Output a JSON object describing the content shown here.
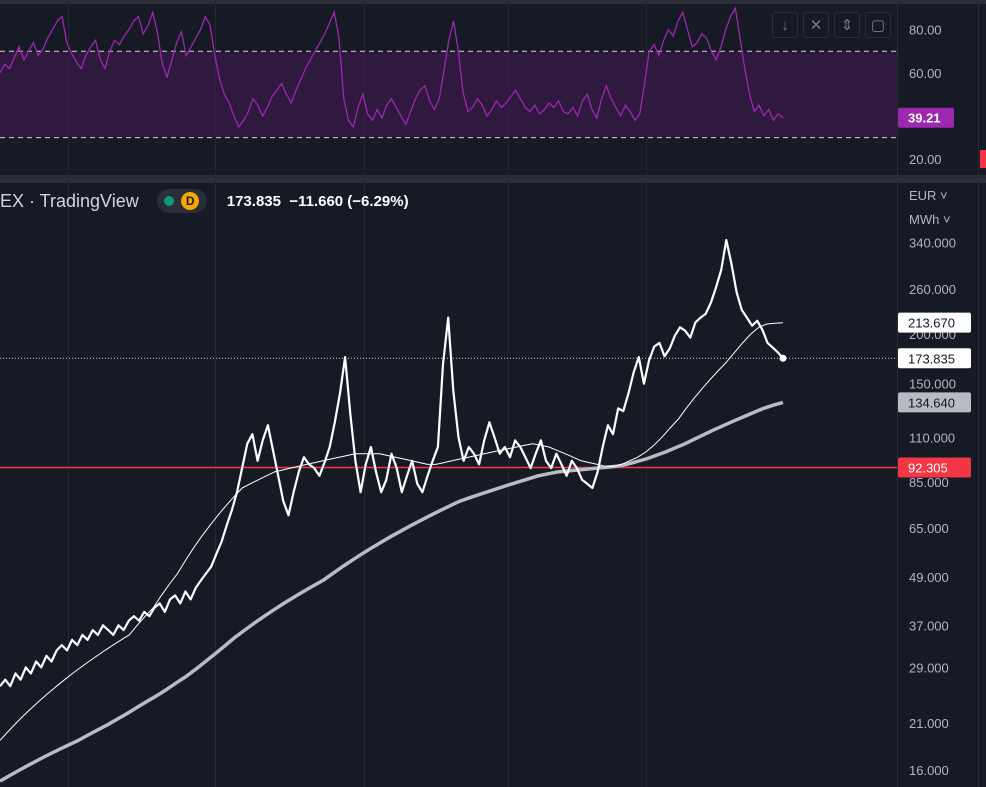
{
  "header": {
    "symbol_fragment": "EX · TradingView",
    "interval": "D",
    "last_price": "173.835",
    "change": "−11.660 (−6.29%)"
  },
  "units": {
    "currency": "EUR ˅",
    "unit": "MWh ˅"
  },
  "toolbar": [
    {
      "icon": "arrow-down-icon",
      "glyph": "↓"
    },
    {
      "icon": "close-icon",
      "glyph": "✕"
    },
    {
      "icon": "collapse-icon",
      "glyph": "⇕"
    },
    {
      "icon": "maximize-icon",
      "glyph": "▢"
    }
  ],
  "colors": {
    "background": "#161a25",
    "price_line": "#ffffff",
    "ma_fast": "#ffffff",
    "ma_slow": "#b8bac4",
    "rsi_line": "#9c27b0",
    "rsi_fill": "#3a1a48",
    "support_line": "#f23645"
  },
  "chart_data": [
    {
      "type": "line",
      "name": "rsi",
      "yticks": [
        "80.00",
        "60.00",
        "20.00"
      ],
      "ytick_values": [
        80,
        60,
        20
      ],
      "levels": [
        70,
        30
      ],
      "last_value_label": "39.21",
      "last_value": 39.21,
      "ylim": [
        15,
        90
      ],
      "values": [
        60,
        64,
        62,
        67,
        72,
        66,
        70,
        74,
        68,
        71,
        76,
        80,
        84,
        86,
        74,
        69,
        65,
        62,
        68,
        72,
        75,
        66,
        62,
        70,
        75,
        73,
        77,
        80,
        84,
        86,
        78,
        82,
        88,
        78,
        64,
        58,
        66,
        74,
        79,
        68,
        72,
        76,
        80,
        86,
        82,
        68,
        57,
        50,
        46,
        40,
        35,
        38,
        42,
        48,
        45,
        40,
        44,
        49,
        52,
        55,
        50,
        46,
        52,
        57,
        62,
        66,
        70,
        74,
        78,
        83,
        88,
        76,
        48,
        38,
        35,
        44,
        50,
        41,
        38,
        43,
        39,
        45,
        48,
        44,
        40,
        36,
        42,
        48,
        52,
        54,
        47,
        43,
        48,
        61,
        75,
        84,
        70,
        51,
        42,
        44,
        48,
        45,
        40,
        43,
        47,
        44,
        46,
        49,
        52,
        48,
        44,
        42,
        45,
        41,
        43,
        46,
        44,
        47,
        42,
        41,
        44,
        40,
        47,
        50,
        43,
        39,
        48,
        54,
        48,
        44,
        40,
        45,
        42,
        38,
        41,
        55,
        70,
        73,
        68,
        75,
        80,
        77,
        84,
        88,
        80,
        72,
        74,
        78,
        76,
        70,
        66,
        72,
        80,
        86,
        90,
        76,
        62,
        50,
        42,
        45,
        40,
        43,
        38,
        41,
        39.21
      ]
    },
    {
      "type": "line",
      "name": "price",
      "scale": "log",
      "yticks": [
        "340.000",
        "260.000",
        "200.000",
        "150.000",
        "110.000",
        "85.000",
        "65.000",
        "49.000",
        "37.000",
        "29.000",
        "21.000",
        "16.000"
      ],
      "ytick_values": [
        340,
        260,
        200,
        150,
        110,
        85,
        65,
        49,
        37,
        29,
        21,
        16
      ],
      "ylim": [
        14.5,
        480
      ],
      "horizontal_line": {
        "value": 92.305,
        "label": "92.305"
      },
      "labels": {
        "ma_fast": "213.670",
        "last": "173.835",
        "ma_slow": "134.640"
      },
      "series": [
        {
          "key": "price",
          "values": [
            26,
            27,
            26,
            28,
            27,
            29,
            28,
            30,
            29,
            31,
            30,
            32,
            33,
            32,
            34,
            33,
            35,
            34,
            36,
            35,
            37,
            36,
            35,
            37,
            36,
            38,
            39,
            38,
            40,
            39,
            41,
            42,
            40,
            43,
            44,
            42,
            45,
            43,
            46,
            48,
            50,
            52,
            56,
            60,
            66,
            72,
            80,
            92,
            106,
            112,
            96,
            108,
            118,
            102,
            88,
            76,
            70,
            80,
            90,
            98,
            94,
            92,
            88,
            95,
            104,
            120,
            142,
            175,
            126,
            96,
            80,
            94,
            104,
            90,
            80,
            86,
            100,
            92,
            80,
            88,
            96,
            84,
            80,
            88,
            96,
            104,
            168,
            220,
            144,
            110,
            96,
            104,
            100,
            94,
            108,
            120,
            110,
            100,
            104,
            98,
            108,
            104,
            98,
            92,
            100,
            108,
            96,
            92,
            100,
            94,
            88,
            96,
            92,
            86,
            84,
            82,
            90,
            104,
            118,
            112,
            130,
            128,
            142,
            160,
            175,
            150,
            172,
            186,
            190,
            176,
            184,
            198,
            208,
            204,
            196,
            214,
            220,
            225,
            240,
            262,
            290,
            345,
            300,
            255,
            230,
            220,
            210,
            216,
            205,
            190,
            185,
            180,
            173.835
          ]
        },
        {
          "key": "ma_fast",
          "values": [
            19,
            20,
            21,
            22,
            23,
            24,
            25,
            26,
            27,
            28,
            29,
            30,
            31,
            32,
            33,
            34,
            35,
            37,
            39,
            41,
            44,
            47,
            50,
            54,
            58,
            62,
            66,
            70,
            74,
            78,
            82,
            84,
            86,
            88,
            90,
            91,
            92,
            93,
            94,
            95,
            96,
            97,
            98,
            99,
            100,
            100,
            100,
            100,
            99,
            98,
            97,
            96,
            95,
            94,
            94,
            95,
            96,
            97,
            98,
            99,
            100,
            101,
            102,
            103,
            104,
            105,
            106,
            105,
            104,
            102,
            100,
            98,
            96,
            95,
            94,
            93,
            93,
            94,
            96,
            98,
            101,
            105,
            110,
            116,
            122,
            130,
            138,
            146,
            154,
            162,
            170,
            180,
            190,
            200,
            208,
            212,
            213,
            213.67
          ]
        },
        {
          "key": "ma_slow",
          "values": [
            15,
            15.5,
            16,
            16.5,
            17,
            17.5,
            18,
            18.5,
            19,
            19.6,
            20.2,
            20.8,
            21.5,
            22.2,
            23,
            23.8,
            24.6,
            25.5,
            26.5,
            27.5,
            28.7,
            30,
            31.4,
            32.9,
            34.5,
            36,
            37.5,
            39,
            40.5,
            42,
            43.5,
            45,
            46.5,
            48,
            50,
            52,
            54,
            56,
            58,
            60,
            62,
            64,
            66,
            68,
            70,
            72,
            74,
            76,
            77.5,
            79,
            80.5,
            82,
            83.5,
            85,
            86.5,
            88,
            89,
            90,
            90.5,
            91,
            91.5,
            92,
            92.5,
            93,
            94,
            95.5,
            97,
            99,
            101,
            103.5,
            106,
            109,
            112,
            115,
            118,
            121,
            124,
            127,
            130,
            132.5,
            134.64
          ]
        }
      ]
    }
  ]
}
